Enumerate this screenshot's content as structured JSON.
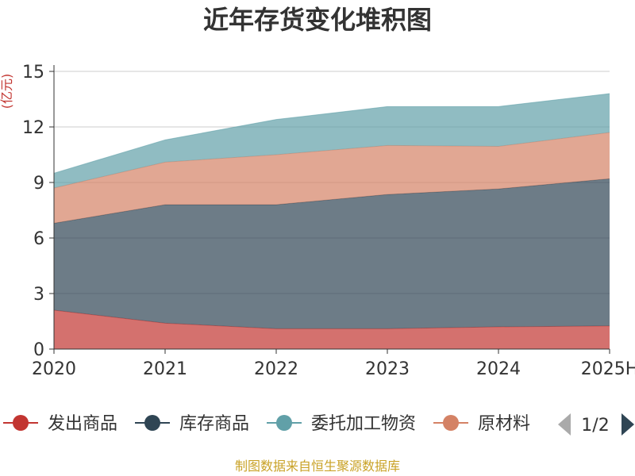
{
  "chart_data": {
    "type": "area",
    "stacked": true,
    "title": "近年存货变化堆积图",
    "ylabel": "(亿元)",
    "categories": [
      "2020",
      "2021",
      "2022",
      "2023",
      "2024",
      "2025H"
    ],
    "ylim": [
      0,
      15
    ],
    "yticks": [
      0,
      3,
      6,
      9,
      12,
      15
    ],
    "grid": true,
    "series": [
      {
        "name": "发出商品",
        "color": "#c23531",
        "values": [
          2.1,
          1.4,
          1.1,
          1.1,
          1.2,
          1.25
        ]
      },
      {
        "name": "库存商品",
        "color": "#2f4554",
        "values": [
          4.7,
          6.4,
          6.7,
          7.25,
          7.45,
          7.95
        ]
      },
      {
        "name": "原材料",
        "color": "#d48265",
        "values": [
          1.9,
          2.3,
          2.7,
          2.65,
          2.3,
          2.5
        ]
      },
      {
        "name": "委托加工物资",
        "color": "#61a0a8",
        "values": [
          0.8,
          1.2,
          1.9,
          2.1,
          2.15,
          2.1
        ]
      }
    ],
    "legend": {
      "position": "bottom",
      "items": [
        {
          "label": "发出商品",
          "color": "#c23531"
        },
        {
          "label": "库存商品",
          "color": "#2f4554"
        },
        {
          "label": "委托加工物资",
          "color": "#61a0a8"
        },
        {
          "label": "原材料",
          "color": "#d48265"
        }
      ],
      "page": "1/2"
    }
  },
  "source_note": "制图数据来自恒生聚源数据库"
}
